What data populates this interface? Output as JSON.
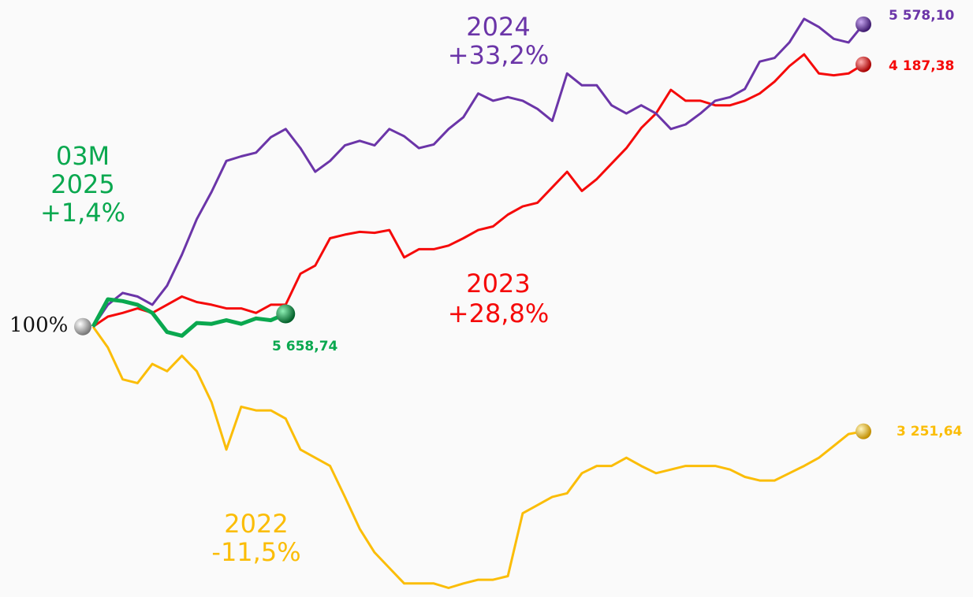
{
  "chart_data": {
    "type": "line",
    "start_label": "100%",
    "ylim": [
      71,
      135
    ],
    "series": [
      {
        "name": "2022",
        "change": "-11,5%",
        "end_label": "3 251,64",
        "color": "#fbbd07",
        "values": [
          100,
          97.7,
          94.2,
          93.8,
          95.9,
          95.1,
          96.8,
          95.1,
          91.7,
          86.5,
          91.2,
          90.8,
          90.8,
          89.9,
          86.5,
          85.6,
          84.7,
          81.3,
          77.8,
          75.2,
          73.5,
          71.8,
          71.8,
          71.8,
          71.3,
          71.8,
          72.2,
          72.2,
          72.6,
          79.5,
          80.4,
          81.3,
          81.7,
          83.9,
          84.7,
          84.7,
          85.6,
          84.7,
          83.9,
          84.3,
          84.7,
          84.7,
          84.7,
          84.3,
          83.5,
          83.1,
          83.1,
          83.9,
          84.7,
          85.6,
          86.9,
          88.2,
          88.5
        ]
      },
      {
        "name": "2023",
        "change": "+28,8%",
        "end_label": "4 187,38",
        "color": "#f50a0a",
        "values": [
          100,
          101.1,
          101.5,
          102.0,
          101.5,
          102.4,
          103.3,
          102.7,
          102.4,
          102.0,
          102.0,
          101.5,
          102.4,
          102.4,
          105.8,
          106.7,
          109.7,
          110.1,
          110.4,
          110.3,
          110.6,
          107.6,
          108.5,
          108.5,
          108.9,
          109.7,
          110.6,
          111.0,
          112.3,
          113.2,
          113.6,
          115.3,
          117.0,
          114.9,
          116.2,
          117.9,
          119.6,
          121.8,
          123.4,
          126.0,
          124.8,
          124.8,
          124.3,
          124.3,
          124.8,
          125.6,
          126.9,
          128.6,
          129.9,
          127.8,
          127.6,
          127.8,
          128.8
        ]
      },
      {
        "name": "2024",
        "change": "+33,2%",
        "end_label": "5 578,10",
        "color": "#6b35a8",
        "values": [
          100,
          102.4,
          103.7,
          103.3,
          102.4,
          104.5,
          107.9,
          111.8,
          114.8,
          118.2,
          118.7,
          119.1,
          120.8,
          121.7,
          119.6,
          117.0,
          118.2,
          119.9,
          120.4,
          119.9,
          121.7,
          120.9,
          119.6,
          120.0,
          121.7,
          123.0,
          125.6,
          124.8,
          125.2,
          124.8,
          123.9,
          122.6,
          127.8,
          126.5,
          126.5,
          124.3,
          123.4,
          124.3,
          123.4,
          121.7,
          122.2,
          123.4,
          124.8,
          125.2,
          126.1,
          129.1,
          129.5,
          131.2,
          133.8,
          132.9,
          131.6,
          131.2,
          133.2
        ]
      },
      {
        "name": "2025",
        "period": "03M",
        "change": "+1,4%",
        "end_label": "5 658,74",
        "color": "#0aa84f",
        "values": [
          100,
          103.0,
          102.8,
          102.4,
          101.5,
          99.4,
          99.0,
          100.4,
          100.3,
          100.7,
          100.3,
          100.9,
          100.7,
          101.4
        ]
      }
    ]
  }
}
